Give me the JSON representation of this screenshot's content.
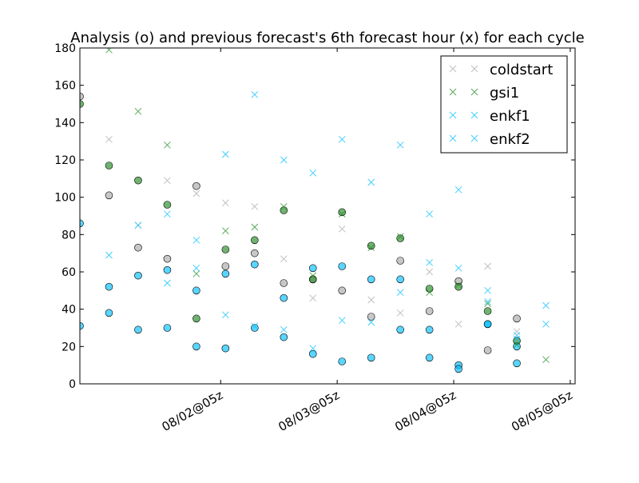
{
  "chart_data": {
    "type": "scatter",
    "title": "Analysis (o) and previous forecast's 6th forecast hour (x) for each cycle",
    "xlabel": "",
    "ylabel": "",
    "xlim": [
      "2015-08-01T00:00",
      "2015-08-05T06:00"
    ],
    "ylim": [
      0,
      180
    ],
    "y_ticks": [
      0,
      20,
      40,
      60,
      80,
      100,
      120,
      140,
      160,
      180
    ],
    "x_ticks": [
      {
        "x": "2015-08-02T05:00",
        "label": "08/02@05z"
      },
      {
        "x": "2015-08-03T05:00",
        "label": "08/03@05z"
      },
      {
        "x": "2015-08-04T05:00",
        "label": "08/04@05z"
      },
      {
        "x": "2015-08-05T05:00",
        "label": "08/05@05z"
      }
    ],
    "grid": false,
    "legend_position": "top-right",
    "categories": [
      "2015-08-01T00:00",
      "2015-08-01T06:00",
      "2015-08-01T12:00",
      "2015-08-01T18:00",
      "2015-08-02T00:00",
      "2015-08-02T06:00",
      "2015-08-02T12:00",
      "2015-08-02T18:00",
      "2015-08-03T00:00",
      "2015-08-03T06:00",
      "2015-08-03T12:00",
      "2015-08-03T18:00",
      "2015-08-04T00:00",
      "2015-08-04T06:00",
      "2015-08-04T12:00",
      "2015-08-04T18:00",
      "2015-08-05T00:00",
      "2015-08-05T06:00"
    ],
    "series": [
      {
        "name": "coldstart",
        "color": "#a9a9a9",
        "analysis": [
          154,
          101,
          73,
          67,
          106,
          63,
          70,
          54,
          56,
          50,
          36,
          66,
          39,
          55,
          18,
          35,
          null,
          null
        ],
        "forecast": [
          null,
          131,
          85,
          109,
          102,
          97,
          95,
          67,
          46,
          83,
          45,
          38,
          60,
          32,
          63,
          28,
          null,
          null
        ]
      },
      {
        "name": "gsi1",
        "color": "#228b22",
        "analysis": [
          150,
          117,
          109,
          96,
          35,
          72,
          77,
          93,
          56,
          92,
          74,
          78,
          51,
          52,
          39,
          23,
          null,
          null
        ],
        "forecast": [
          null,
          179,
          146,
          128,
          59,
          82,
          84,
          95,
          58,
          91,
          73,
          79,
          49,
          53,
          43,
          21,
          13,
          null
        ]
      },
      {
        "name": "enkf1",
        "color": "#00bfff",
        "analysis": [
          86,
          52,
          58,
          61,
          50,
          59,
          64,
          46,
          62,
          63,
          56,
          56,
          29,
          10,
          32,
          20,
          null,
          null
        ],
        "forecast": [
          null,
          69,
          85,
          91,
          77,
          123,
          155,
          120,
          113,
          131,
          108,
          128,
          91,
          104,
          50,
          26,
          42,
          null
        ]
      },
      {
        "name": "enkf2",
        "color": "#00bfff",
        "analysis": [
          31,
          38,
          29,
          30,
          20,
          19,
          30,
          25,
          16,
          12,
          14,
          29,
          14,
          8,
          32,
          11,
          null,
          null
        ],
        "forecast": [
          null,
          null,
          null,
          54,
          62,
          37,
          31,
          29,
          19,
          34,
          33,
          49,
          65,
          62,
          44,
          24,
          32,
          null
        ]
      }
    ]
  }
}
